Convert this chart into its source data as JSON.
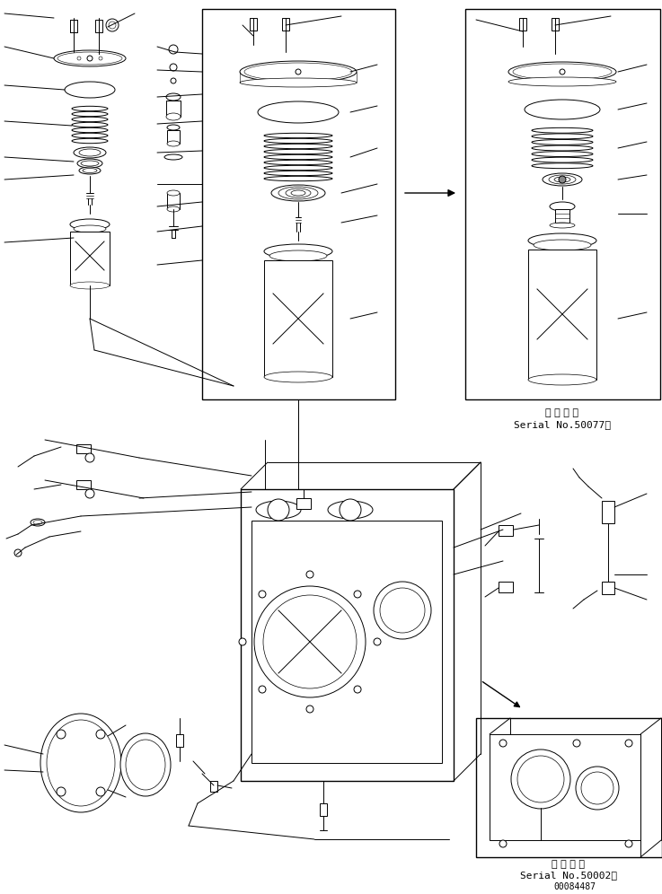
{
  "background_color": "#ffffff",
  "line_color": "#000000",
  "fig_width": 7.37,
  "fig_height": 9.96,
  "dpi": 100,
  "serial_no_1_line1": "適 用 号 機",
  "serial_no_1_line2": "Serial No.50077～",
  "serial_no_2_line1": "適 用 号 機",
  "serial_no_2_line2": "Serial No.50002～",
  "part_number": "00084487",
  "mono_font": "monospace"
}
